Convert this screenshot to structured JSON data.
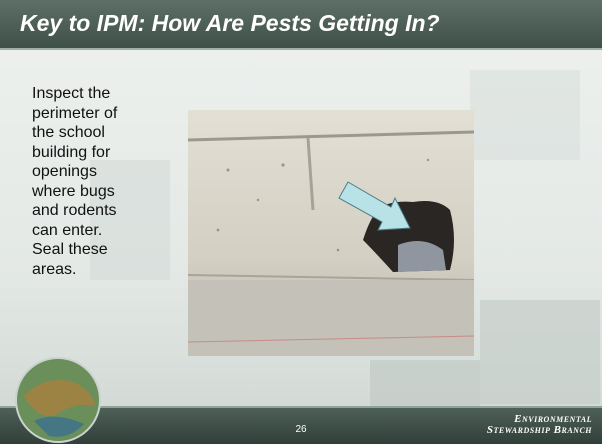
{
  "slide": {
    "title": "Key to IPM: How Are Pests Getting In?",
    "body_lines": [
      "Inspect the",
      "perimeter of",
      "the school",
      "building for",
      "openings",
      "where bugs",
      "and rodents",
      "can enter.",
      "Seal these",
      "areas."
    ],
    "page_number": "26",
    "branding": [
      "Environmental",
      "Stewardship Branch"
    ]
  }
}
